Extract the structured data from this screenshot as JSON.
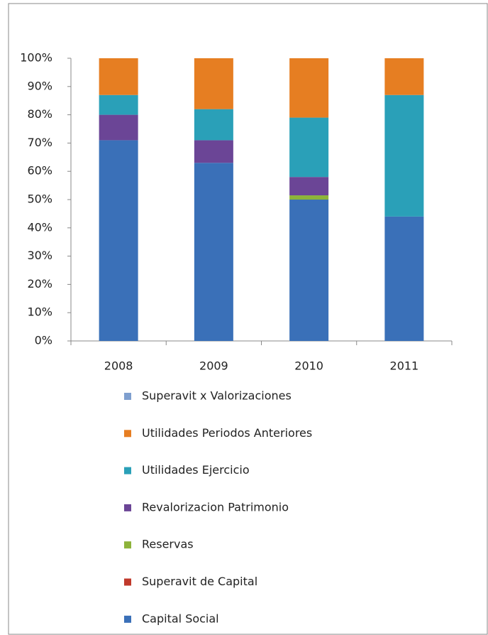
{
  "chart_data": {
    "type": "stacked_bar",
    "categories": [
      "2008",
      "2009",
      "2010",
      "2011"
    ],
    "series": [
      {
        "name": "Capital Social",
        "color": "#3a70b8",
        "values": [
          71,
          63,
          50,
          44
        ]
      },
      {
        "name": "Superavit de Capital",
        "color": "#c0392b",
        "values": [
          0,
          0,
          0,
          0
        ]
      },
      {
        "name": "Reservas",
        "color": "#8db33a",
        "values": [
          0,
          0,
          1.5,
          0
        ]
      },
      {
        "name": "Revalorizacion Patrimonio",
        "color": "#6b4596",
        "values": [
          9,
          8,
          6.5,
          0
        ]
      },
      {
        "name": "Utilidades Ejercicio",
        "color": "#2aa0b8",
        "values": [
          7,
          11,
          21,
          43
        ]
      },
      {
        "name": "Utilidades Periodos Anteriores",
        "color": "#e67e22",
        "values": [
          13,
          18,
          21,
          13
        ]
      },
      {
        "name": "Superavit x Valorizaciones",
        "color": "#7f9fcf",
        "values": [
          0,
          0,
          0,
          0
        ]
      }
    ],
    "ylim": [
      0,
      100
    ],
    "yticks": [
      {
        "value": 0,
        "label": "0%"
      },
      {
        "value": 10,
        "label": "10%"
      },
      {
        "value": 20,
        "label": "20%"
      },
      {
        "value": 30,
        "label": "30%"
      },
      {
        "value": 40,
        "label": "40%"
      },
      {
        "value": 50,
        "label": "50%"
      },
      {
        "value": 60,
        "label": "60%"
      },
      {
        "value": 70,
        "label": "70%"
      },
      {
        "value": 80,
        "label": "80%"
      },
      {
        "value": 90,
        "label": "90%"
      },
      {
        "value": 100,
        "label": "100%"
      }
    ]
  }
}
